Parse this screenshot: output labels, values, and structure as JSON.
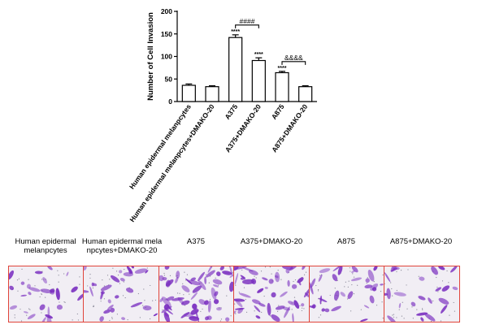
{
  "chart_data": {
    "type": "bar",
    "ylabel": "Number of Cell Invasion",
    "xlabel": "",
    "ylim": [
      0,
      200
    ],
    "yticks": [
      0,
      50,
      100,
      150,
      200
    ],
    "categories": [
      "Human epidermal melanpcytes",
      "Human epidermal melanpcytes+DMAKO-20",
      "A375",
      "A375+DMAKO-20",
      "A875",
      "A875+DMAKO-20"
    ],
    "values": [
      36,
      33,
      142,
      91,
      64,
      33
    ],
    "errors": [
      3,
      2,
      6,
      6,
      3,
      2
    ],
    "significance": [
      "",
      "",
      "****",
      "****",
      "****",
      ""
    ],
    "comparisons": [
      {
        "from": 2,
        "to": 3,
        "label": "####"
      },
      {
        "from": 4,
        "to": 5,
        "label": "&&&&"
      }
    ]
  },
  "panels": {
    "labels": [
      "Human epidermal melanpcytes",
      "Human epidermal melanpcytes+DMAKO-20",
      "A375",
      "A375+DMAKO-20",
      "A875",
      "A875+DMAKO-20"
    ],
    "border_color": "#e0443a",
    "stain_color": "#7a2fc0",
    "density": [
      0.35,
      0.4,
      1.0,
      0.8,
      0.45,
      0.3
    ]
  }
}
